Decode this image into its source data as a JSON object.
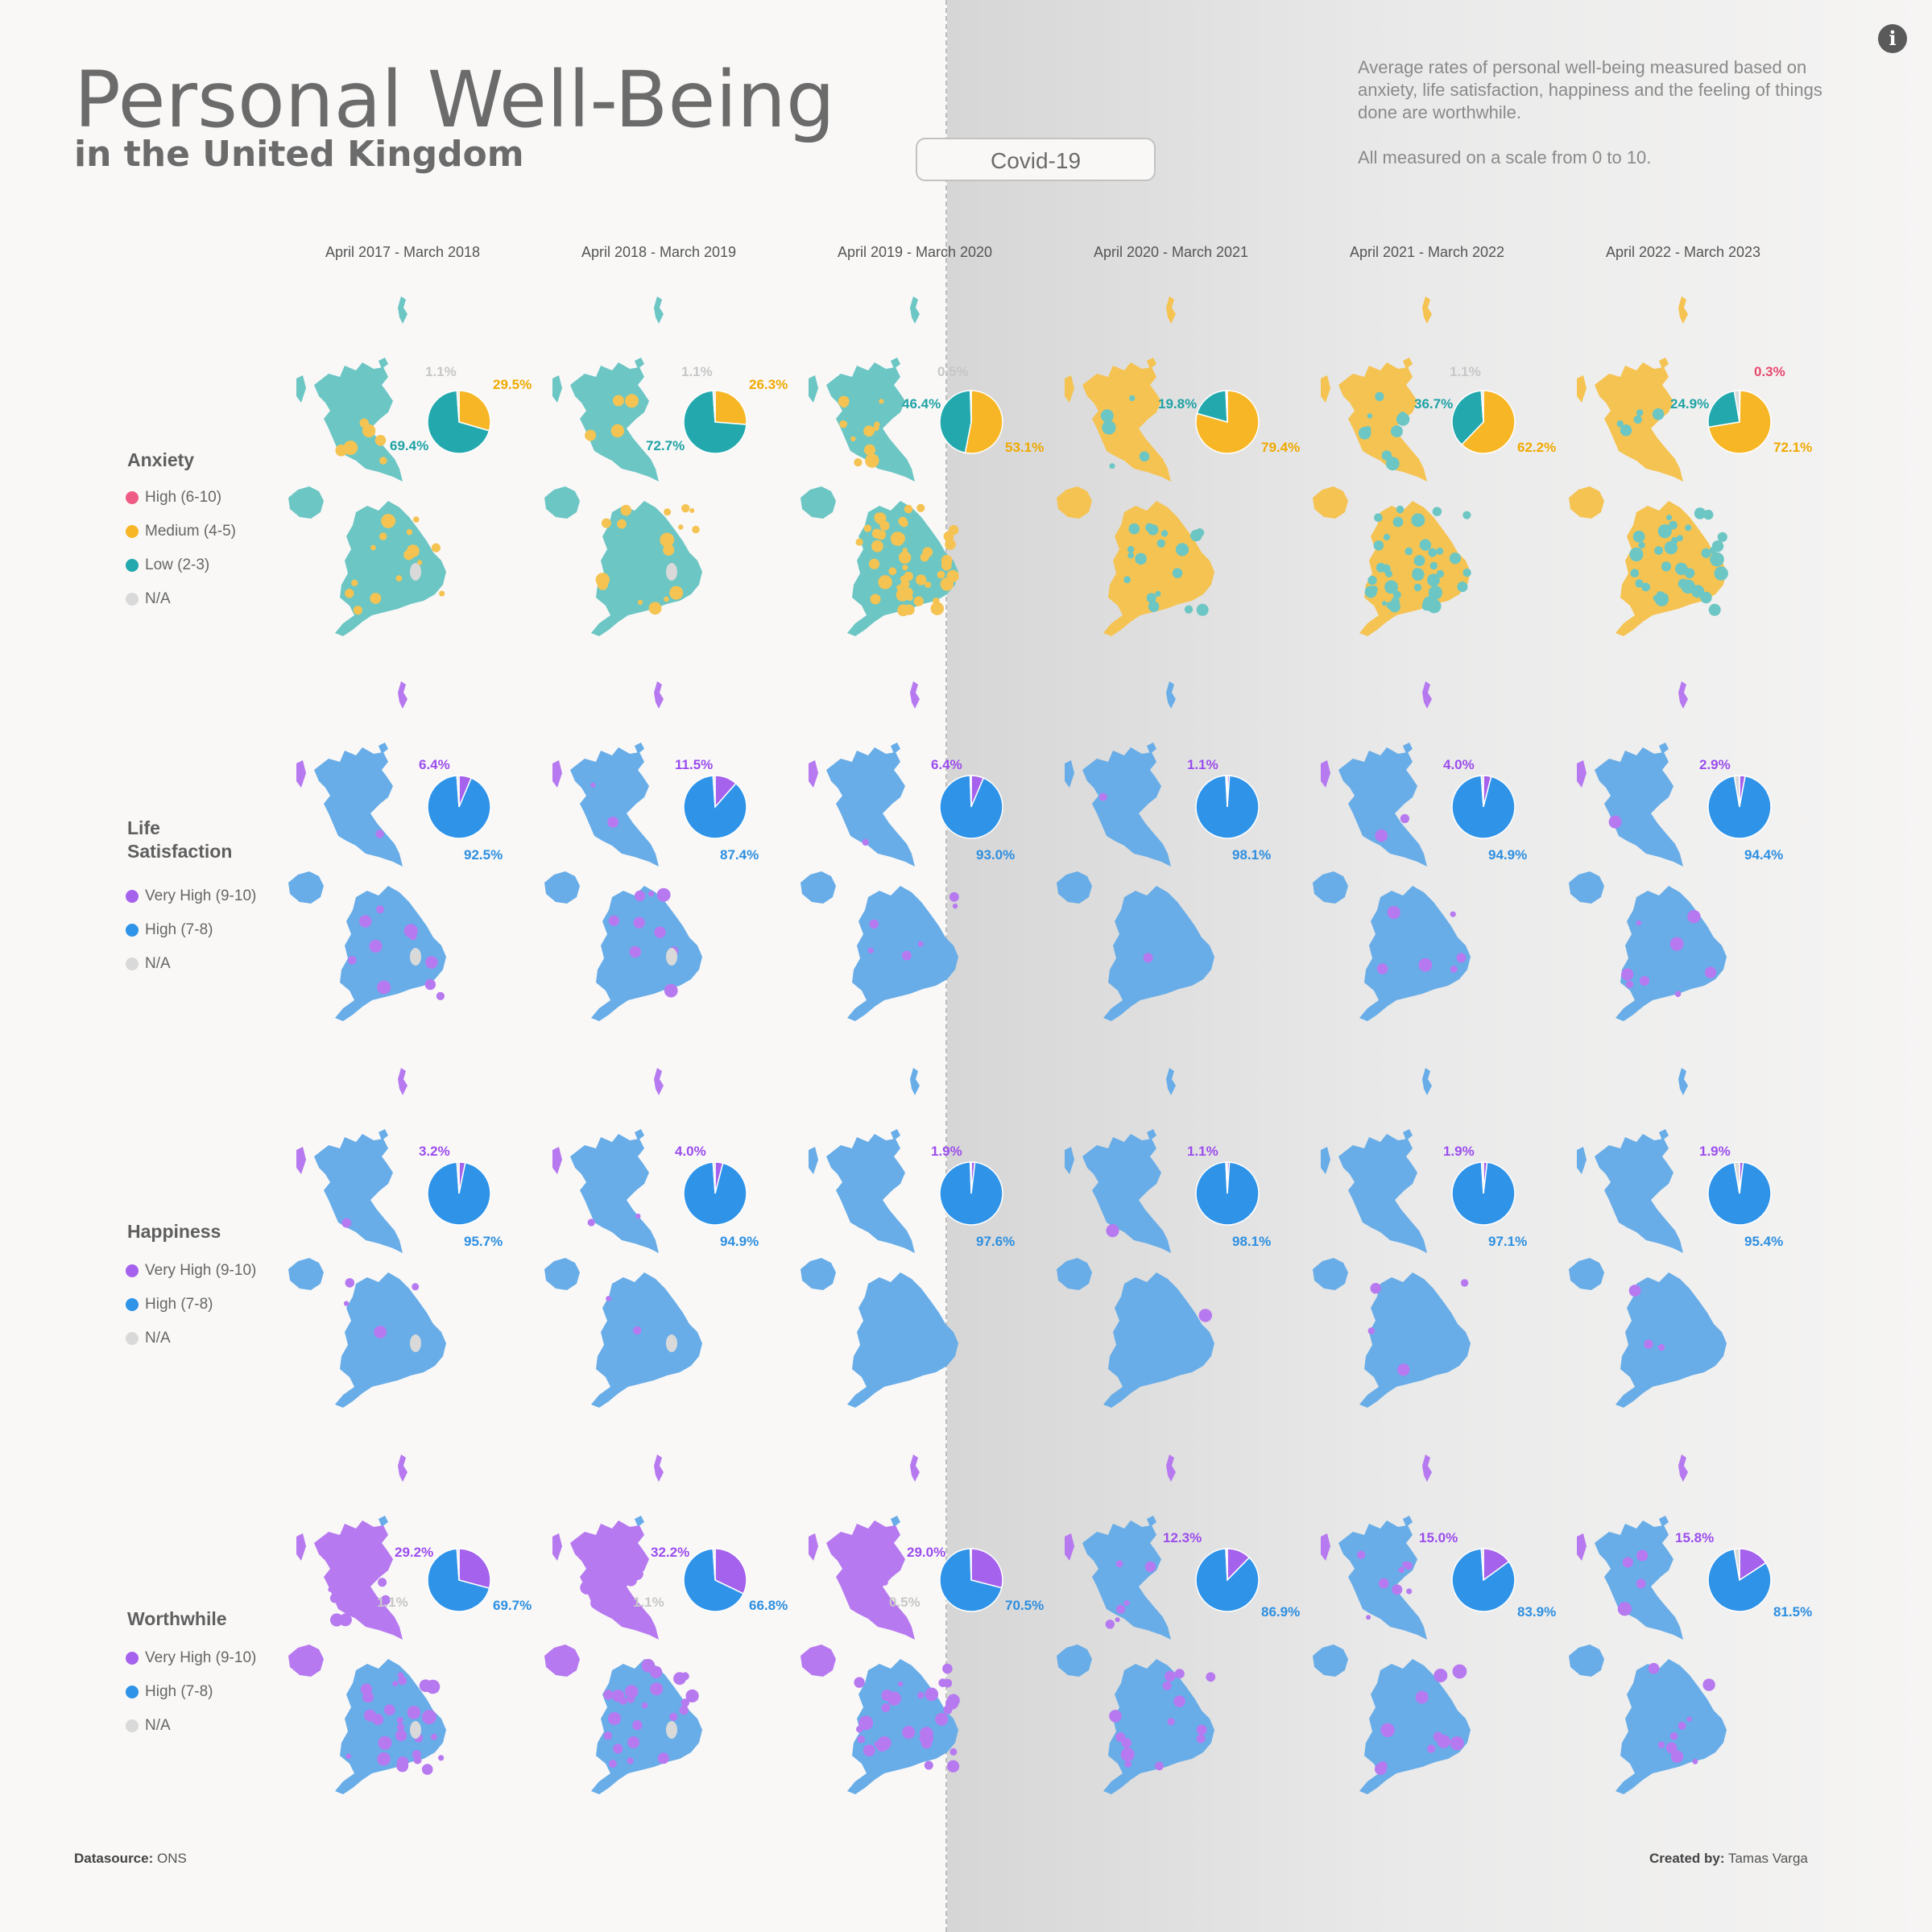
{
  "title": "Personal Well-Being",
  "subtitle": "in the United Kingdom",
  "description": [
    "Average rates of personal well-being measured based on anxiety, life satisfaction, happiness and the feeling of things done are worthwhile.",
    "All measured on a scale from 0 to 10."
  ],
  "covid_button": "Covid-19",
  "info_icon": "i",
  "colors": {
    "anxiety_high": "#ef5b85",
    "anxiety_medium": "#f7b625",
    "anxiety_low": "#23a9ad",
    "very_high": "#a562ec",
    "high": "#2f93e8",
    "na": "#d9d9d9",
    "anxiety_low_map": "#6cc6c4",
    "anxiety_medium_map": "#f5c352",
    "very_high_map": "#b779f0",
    "high_map": "#68ade8"
  },
  "footer": {
    "datasource_label": "Datasource:",
    "datasource": "ONS",
    "created_label": "Created by:",
    "created": "Tamas Varga"
  },
  "periods": [
    "April 2017 - March 2018",
    "April 2018 - March 2019",
    "April 2019 - March 2020",
    "April 2020 - March 2021",
    "April 2021 - March 2022",
    "April 2022 - March 2023"
  ],
  "rows": [
    {
      "title": "Anxiety",
      "legend": [
        {
          "label": "High (6-10)",
          "color": "#ef5b85"
        },
        {
          "label": "Medium (4-5)",
          "color": "#f7b625"
        },
        {
          "label": "Low (2-3)",
          "color": "#23a9ad"
        },
        {
          "label": "N/A",
          "color": "#d9d9d9"
        }
      ]
    },
    {
      "title": "Life Satisfaction",
      "legend": [
        {
          "label": "Very High (9-10)",
          "color": "#a562ec"
        },
        {
          "label": "High (7-8)",
          "color": "#2f93e8"
        },
        {
          "label": "N/A",
          "color": "#d9d9d9"
        }
      ]
    },
    {
      "title": "Happiness",
      "legend": [
        {
          "label": "Very High (9-10)",
          "color": "#a562ec"
        },
        {
          "label": "High (7-8)",
          "color": "#2f93e8"
        },
        {
          "label": "N/A",
          "color": "#d9d9d9"
        }
      ]
    },
    {
      "title": "Worthwhile",
      "legend": [
        {
          "label": "Very High (9-10)",
          "color": "#a562ec"
        },
        {
          "label": "High (7-8)",
          "color": "#2f93e8"
        },
        {
          "label": "N/A",
          "color": "#d9d9d9"
        }
      ]
    }
  ],
  "chart_data": [
    {
      "type": "pie",
      "measure": "Anxiety",
      "categories": [
        "High (6-10)",
        "Medium (4-5)",
        "Low (2-3)",
        "N/A"
      ],
      "series": [
        {
          "name": "April 2017 - March 2018",
          "values": [
            0,
            29.5,
            69.4,
            1.1
          ]
        },
        {
          "name": "April 2018 - March 2019",
          "values": [
            0,
            26.3,
            72.7,
            1.1
          ]
        },
        {
          "name": "April 2019 - March 2020",
          "values": [
            0,
            53.1,
            46.4,
            0.5
          ]
        },
        {
          "name": "April 2020 - March 2021",
          "values": [
            0,
            79.4,
            19.8,
            0.8
          ]
        },
        {
          "name": "April 2021 - March 2022",
          "values": [
            0,
            62.2,
            36.7,
            1.1
          ]
        },
        {
          "name": "April 2022 - March 2023",
          "values": [
            0.3,
            72.1,
            24.9,
            2.7
          ]
        }
      ],
      "labels": [
        [
          {
            "text": "1.1%",
            "cat": 3
          },
          {
            "text": "29.5%",
            "cat": 1
          },
          {
            "text": "69.4%",
            "cat": 2
          }
        ],
        [
          {
            "text": "1.1%",
            "cat": 3
          },
          {
            "text": "26.3%",
            "cat": 1
          },
          {
            "text": "72.7%",
            "cat": 2
          }
        ],
        [
          {
            "text": "0.5%",
            "cat": 3
          },
          {
            "text": "46.4%",
            "cat": 2
          },
          {
            "text": "53.1%",
            "cat": 1
          }
        ],
        [
          {
            "text": "19.8%",
            "cat": 2
          },
          {
            "text": "79.4%",
            "cat": 1
          }
        ],
        [
          {
            "text": "1.1%",
            "cat": 3
          },
          {
            "text": "36.7%",
            "cat": 2
          },
          {
            "text": "62.2%",
            "cat": 1
          }
        ],
        [
          {
            "text": "0.3%",
            "cat": 0
          },
          {
            "text": "24.9%",
            "cat": 2
          },
          {
            "text": "72.1%",
            "cat": 1
          }
        ]
      ]
    },
    {
      "type": "pie",
      "measure": "Life Satisfaction",
      "categories": [
        "Very High (9-10)",
        "High (7-8)",
        "N/A"
      ],
      "series": [
        {
          "name": "April 2017 - March 2018",
          "values": [
            6.4,
            92.5,
            1.1
          ]
        },
        {
          "name": "April 2018 - March 2019",
          "values": [
            11.5,
            87.4,
            1.1
          ]
        },
        {
          "name": "April 2019 - March 2020",
          "values": [
            6.4,
            93.0,
            0.6
          ]
        },
        {
          "name": "April 2020 - March 2021",
          "values": [
            1.1,
            98.1,
            0.8
          ]
        },
        {
          "name": "April 2021 - March 2022",
          "values": [
            4.0,
            94.9,
            1.1
          ]
        },
        {
          "name": "April 2022 - March 2023",
          "values": [
            2.9,
            94.4,
            2.7
          ]
        }
      ],
      "labels": [
        [
          {
            "text": "6.4%",
            "cat": 0
          },
          {
            "text": "92.5%",
            "cat": 1
          }
        ],
        [
          {
            "text": "11.5%",
            "cat": 0
          },
          {
            "text": "87.4%",
            "cat": 1
          }
        ],
        [
          {
            "text": "6.4%",
            "cat": 0
          },
          {
            "text": "93.0%",
            "cat": 1
          }
        ],
        [
          {
            "text": "1.1%",
            "cat": 0
          },
          {
            "text": "98.1%",
            "cat": 1
          }
        ],
        [
          {
            "text": "4.0%",
            "cat": 0
          },
          {
            "text": "94.9%",
            "cat": 1
          }
        ],
        [
          {
            "text": "2.9%",
            "cat": 0
          },
          {
            "text": "94.4%",
            "cat": 1
          }
        ]
      ]
    },
    {
      "type": "pie",
      "measure": "Happiness",
      "categories": [
        "Very High (9-10)",
        "High (7-8)",
        "N/A"
      ],
      "series": [
        {
          "name": "April 2017 - March 2018",
          "values": [
            3.2,
            95.7,
            1.1
          ]
        },
        {
          "name": "April 2018 - March 2019",
          "values": [
            4.0,
            94.9,
            1.1
          ]
        },
        {
          "name": "April 2019 - March 2020",
          "values": [
            1.9,
            97.6,
            0.5
          ]
        },
        {
          "name": "April 2020 - March 2021",
          "values": [
            1.1,
            98.1,
            0.8
          ]
        },
        {
          "name": "April 2021 - March 2022",
          "values": [
            1.9,
            97.1,
            1.0
          ]
        },
        {
          "name": "April 2022 - March 2023",
          "values": [
            1.9,
            95.4,
            2.7
          ]
        }
      ],
      "labels": [
        [
          {
            "text": "3.2%",
            "cat": 0
          },
          {
            "text": "95.7%",
            "cat": 1
          }
        ],
        [
          {
            "text": "4.0%",
            "cat": 0
          },
          {
            "text": "94.9%",
            "cat": 1
          }
        ],
        [
          {
            "text": "1.9%",
            "cat": 0
          },
          {
            "text": "97.6%",
            "cat": 1
          }
        ],
        [
          {
            "text": "1.1%",
            "cat": 0
          },
          {
            "text": "98.1%",
            "cat": 1
          }
        ],
        [
          {
            "text": "1.9%",
            "cat": 0
          },
          {
            "text": "97.1%",
            "cat": 1
          }
        ],
        [
          {
            "text": "1.9%",
            "cat": 0
          },
          {
            "text": "95.4%",
            "cat": 1
          }
        ]
      ]
    },
    {
      "type": "pie",
      "measure": "Worthwhile",
      "categories": [
        "Very High (9-10)",
        "High (7-8)",
        "N/A"
      ],
      "series": [
        {
          "name": "April 2017 - March 2018",
          "values": [
            29.2,
            69.7,
            1.1
          ]
        },
        {
          "name": "April 2018 - March 2019",
          "values": [
            32.2,
            66.8,
            1.1
          ]
        },
        {
          "name": "April 2019 - March 2020",
          "values": [
            29.0,
            70.5,
            0.5
          ]
        },
        {
          "name": "April 2020 - March 2021",
          "values": [
            12.3,
            86.9,
            0.8
          ]
        },
        {
          "name": "April 2021 - March 2022",
          "values": [
            15.0,
            83.9,
            1.1
          ]
        },
        {
          "name": "April 2022 - March 2023",
          "values": [
            15.8,
            81.5,
            2.7
          ]
        }
      ],
      "labels": [
        [
          {
            "text": "29.2%",
            "cat": 0
          },
          {
            "text": "1.1%",
            "cat": 2
          },
          {
            "text": "69.7%",
            "cat": 1
          }
        ],
        [
          {
            "text": "32.2%",
            "cat": 0
          },
          {
            "text": "1.1%",
            "cat": 2
          },
          {
            "text": "66.8%",
            "cat": 1
          }
        ],
        [
          {
            "text": "29.0%",
            "cat": 0
          },
          {
            "text": "0.5%",
            "cat": 2
          },
          {
            "text": "70.5%",
            "cat": 1
          }
        ],
        [
          {
            "text": "12.3%",
            "cat": 0
          },
          {
            "text": "86.9%",
            "cat": 1
          }
        ],
        [
          {
            "text": "15.0%",
            "cat": 0
          },
          {
            "text": "83.9%",
            "cat": 1
          }
        ],
        [
          {
            "text": "15.8%",
            "cat": 0
          },
          {
            "text": "81.5%",
            "cat": 1
          }
        ]
      ]
    }
  ]
}
